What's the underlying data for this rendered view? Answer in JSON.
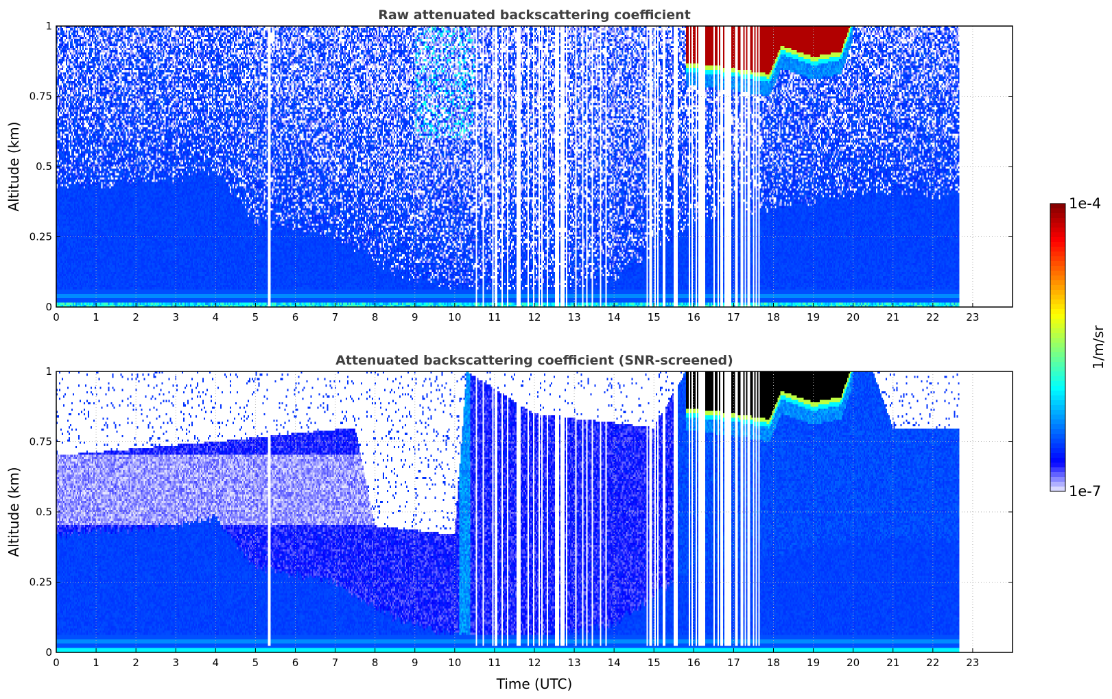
{
  "chart_data": [
    {
      "type": "heatmap",
      "title": "Raw attenuated backscattering coefficient",
      "xlabel": "",
      "ylabel": "Altitude (km)",
      "xlim": [
        0,
        24
      ],
      "ylim": [
        0,
        1
      ],
      "xticks": [
        "0",
        "1",
        "2",
        "3",
        "4",
        "5",
        "6",
        "7",
        "8",
        "9",
        "10",
        "11",
        "12",
        "13",
        "14",
        "15",
        "16",
        "17",
        "18",
        "19",
        "20",
        "21",
        "22",
        "23"
      ],
      "yticks": [
        {
          "v": 0,
          "label": "0"
        },
        {
          "v": 0.25,
          "label": "0.25"
        },
        {
          "v": 0.5,
          "label": "0.5"
        },
        {
          "v": 0.75,
          "label": "0.75"
        },
        {
          "v": 1,
          "label": "1"
        }
      ],
      "grid": true,
      "data_end_time": 22.65,
      "features": {
        "boundary_layer_top_km": [
          [
            0,
            0.42
          ],
          [
            3,
            0.45
          ],
          [
            4,
            0.48
          ],
          [
            5,
            0.3
          ],
          [
            7,
            0.25
          ],
          [
            8.5,
            0.12
          ],
          [
            10,
            0.06
          ],
          [
            12,
            0.05
          ],
          [
            14,
            0.1
          ],
          [
            16,
            0.3
          ],
          [
            18,
            0.35
          ],
          [
            20,
            0.4
          ],
          [
            22.65,
            0.4
          ]
        ],
        "cloud": {
          "time_range": [
            15.8,
            20.0
          ],
          "base_km": [
            [
              15.8,
              0.84
            ],
            [
              17,
              0.82
            ],
            [
              17.9,
              0.8
            ],
            [
              18.2,
              0.9
            ],
            [
              19,
              0.86
            ],
            [
              19.7,
              0.88
            ],
            [
              20,
              1.0
            ]
          ],
          "value": 0.0001
        },
        "missing_profile_periods": [
          [
            10.5,
            14.0
          ],
          [
            14.8,
            17.8
          ]
        ]
      }
    },
    {
      "type": "heatmap",
      "title": "Attenuated backscattering coefficient (SNR-screened)",
      "xlabel": "Time (UTC)",
      "ylabel": "Altitude (km)",
      "xlim": [
        0,
        24
      ],
      "ylim": [
        0,
        1
      ],
      "xticks": [
        "0",
        "1",
        "2",
        "3",
        "4",
        "5",
        "6",
        "7",
        "8",
        "9",
        "10",
        "11",
        "12",
        "13",
        "14",
        "15",
        "16",
        "17",
        "18",
        "19",
        "20",
        "21",
        "22",
        "23"
      ],
      "yticks": [
        {
          "v": 0,
          "label": "0"
        },
        {
          "v": 0.25,
          "label": "0.25"
        },
        {
          "v": 0.5,
          "label": "0.5"
        },
        {
          "v": 0.75,
          "label": "0.75"
        },
        {
          "v": 1,
          "label": "1"
        }
      ],
      "grid": true,
      "data_end_time": 22.65,
      "features": {
        "screen_top_km": [
          [
            0,
            0.7
          ],
          [
            4,
            0.75
          ],
          [
            7.5,
            0.8
          ],
          [
            8,
            0.45
          ],
          [
            10,
            0.42
          ],
          [
            10.3,
            1
          ],
          [
            12,
            0.85
          ],
          [
            15,
            0.8
          ],
          [
            15.8,
            1
          ],
          [
            20.5,
            1
          ],
          [
            21,
            0.8
          ],
          [
            22.65,
            0.8
          ]
        ],
        "saturated_cloud_color": "#000000"
      }
    }
  ],
  "colorbar": {
    "label": "1/m/sr",
    "min_label": "1e-7",
    "max_label": "1e-4",
    "min": 1e-07,
    "max": 0.0001,
    "scale": "log",
    "colormap": "jet",
    "low_color": "#ececff"
  }
}
